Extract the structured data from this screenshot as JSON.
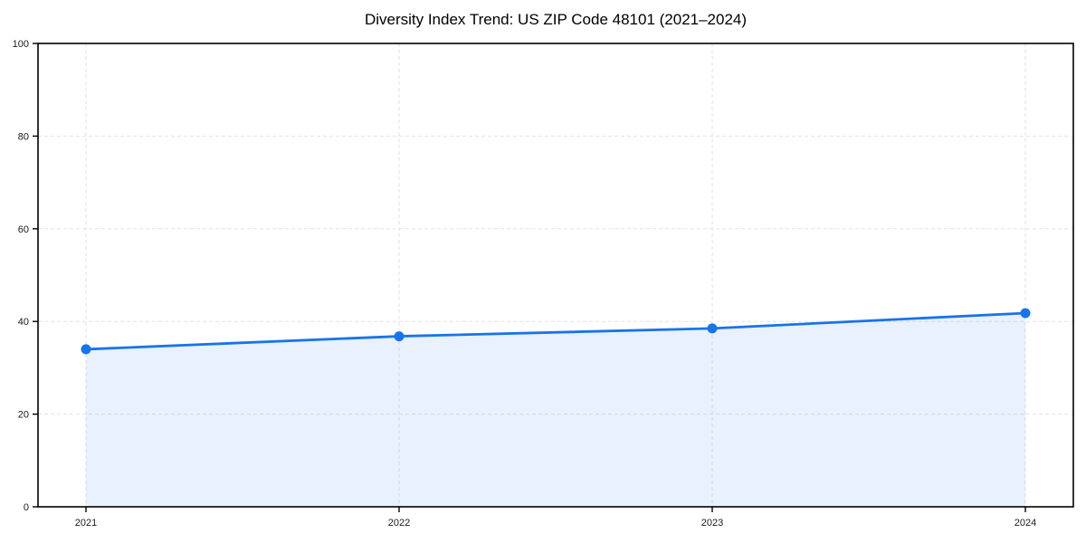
{
  "figure": {
    "background": "#ffffff"
  },
  "chart_data": {
    "type": "line",
    "title": "Diversity Index Trend: US ZIP Code 48101 (2021–2024)",
    "x": [
      2021,
      2022,
      2023,
      2024
    ],
    "series": [
      {
        "name": "Diversity Index",
        "values": [
          34.0,
          36.8,
          38.5,
          41.8
        ]
      }
    ],
    "xticks": [
      "2021",
      "2022",
      "2023",
      "2024"
    ],
    "yticks": [
      0,
      20,
      40,
      60,
      80,
      100
    ],
    "xlabel": "",
    "ylabel": "",
    "ylim": [
      0,
      100
    ],
    "grid": "dashed, both axes",
    "legend": "none",
    "area_fill": true,
    "colors": {
      "line": "#1a73e8",
      "marker": "#1a73e8",
      "fill": "#1a73e8",
      "fill_opacity": 0.1,
      "grid": "#e2e2e2",
      "spine": "#000000",
      "tick_text": "#1a1a1a"
    }
  }
}
